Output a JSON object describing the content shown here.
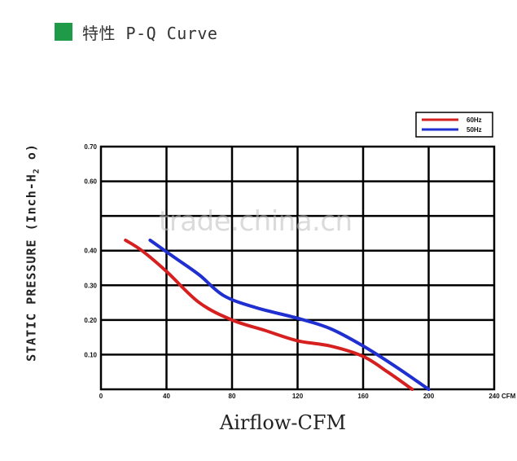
{
  "header": {
    "title": "特性 P-Q Curve"
  },
  "watermark": "trade.china.cn",
  "chart_data": {
    "type": "line",
    "title": "特性 P-Q Curve",
    "xlabel": "Airflow-CFM",
    "ylabel": "STATIC PRESSURE (Inch-H₂ o)",
    "ylabel_parts": {
      "main": "STATIC PRESSURE (Inch-H",
      "sub": "2",
      "tail": " o)"
    },
    "xlim": [
      0,
      240
    ],
    "ylim": [
      0,
      0.7
    ],
    "x_ticks": [
      "0",
      "40",
      "80",
      "120",
      "160",
      "200",
      "240"
    ],
    "x_unit": "CFM",
    "y_ticks": [
      "0.10",
      "0.20",
      "0.30",
      "0.40",
      "",
      "0.60",
      "0.70"
    ],
    "grid": true,
    "legend_position": "top-right",
    "series": [
      {
        "name": "60Hz",
        "color": "#d62020",
        "x": [
          15,
          25,
          40,
          60,
          80,
          100,
          120,
          140,
          160,
          175,
          190
        ],
        "y": [
          0.43,
          0.4,
          0.34,
          0.25,
          0.2,
          0.17,
          0.14,
          0.125,
          0.095,
          0.05,
          0.0
        ]
      },
      {
        "name": "50Hz",
        "color": "#1f2fd0",
        "x": [
          30,
          45,
          60,
          75,
          95,
          120,
          140,
          160,
          180,
          200
        ],
        "y": [
          0.43,
          0.38,
          0.33,
          0.27,
          0.235,
          0.205,
          0.175,
          0.125,
          0.065,
          0.0
        ]
      }
    ]
  }
}
